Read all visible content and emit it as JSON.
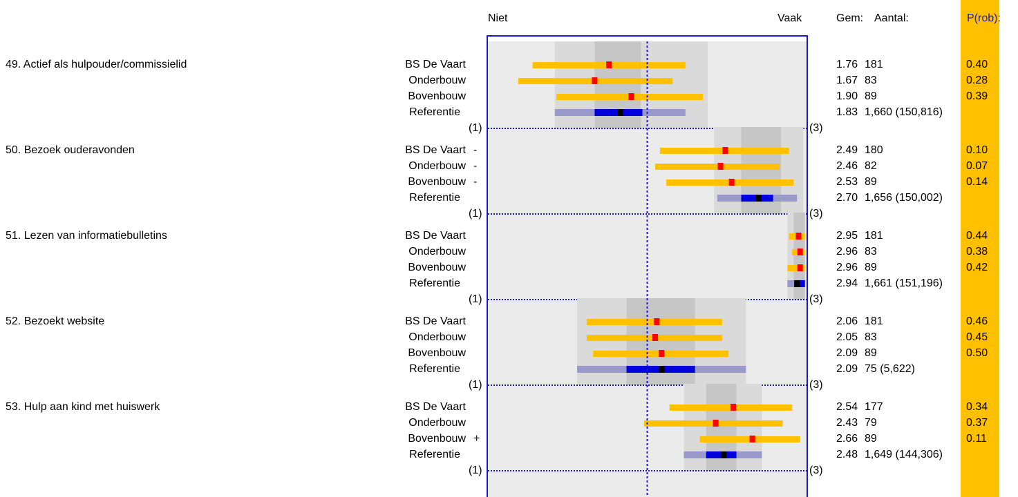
{
  "header": {
    "left_anchor": "Niet",
    "right_anchor": "Vaak",
    "mean_label": "Gem:",
    "count_label": "Aantal:",
    "prob_label": "P(rob):"
  },
  "scale_labels": {
    "min": "(1)",
    "max": "(3)"
  },
  "colors": {
    "school_bar": "#ffc000",
    "school_mean": "#ff0000",
    "reference_bar_outer": "#9999cc",
    "reference_bar_inner": "#0000dd",
    "reference_mean": "#000000",
    "frame": "#1a1acd",
    "prob_column": "#ffc000"
  },
  "chart_data": {
    "type": "range-dot",
    "x_range": [
      1,
      3
    ],
    "midline": 2,
    "items": [
      {
        "title": "49.  Actief als hulpouder/commissielid",
        "reference_band": {
          "outer": [
            1.42,
            2.38
          ],
          "inner": [
            1.67,
            1.96
          ]
        },
        "rows": [
          {
            "group": "BS De Vaart",
            "sign": "",
            "range": [
              1.28,
              2.24
            ],
            "mean": 1.76,
            "mean_display": "1.76",
            "count": "181",
            "prob": "0.40"
          },
          {
            "group": "Onderbouw",
            "sign": "",
            "range": [
              1.19,
              2.16
            ],
            "mean": 1.67,
            "mean_display": "1.67",
            "count": "83",
            "prob": "0.28"
          },
          {
            "group": "Bovenbouw",
            "sign": "",
            "range": [
              1.43,
              2.35
            ],
            "mean": 1.9,
            "mean_display": "1.90",
            "count": "89",
            "prob": "0.39"
          },
          {
            "group": "Referentie",
            "sign": "",
            "range": [
              1.42,
              2.24
            ],
            "inner": [
              1.67,
              1.97
            ],
            "mean": 1.83,
            "mean_display": "1.83",
            "count": "1,660 (150,816)",
            "prob": "",
            "is_reference": true
          }
        ]
      },
      {
        "title": "50.  Bezoek ouderavonden",
        "reference_band": {
          "outer": [
            2.42,
            2.98
          ],
          "inner": [
            2.59,
            2.84
          ]
        },
        "rows": [
          {
            "group": "BS De Vaart",
            "sign": "-",
            "range": [
              2.08,
              2.89
            ],
            "mean": 2.49,
            "mean_display": "2.49",
            "count": "180",
            "prob": "0.10"
          },
          {
            "group": "Onderbouw",
            "sign": "-",
            "range": [
              2.05,
              2.83
            ],
            "mean": 2.46,
            "mean_display": "2.46",
            "count": "82",
            "prob": "0.07"
          },
          {
            "group": "Bovenbouw",
            "sign": "-",
            "range": [
              2.12,
              2.92
            ],
            "mean": 2.53,
            "mean_display": "2.53",
            "count": "89",
            "prob": "0.14"
          },
          {
            "group": "Referentie",
            "sign": "",
            "range": [
              2.44,
              2.94
            ],
            "inner": [
              2.59,
              2.79
            ],
            "mean": 2.7,
            "mean_display": "2.70",
            "count": "1,656 (150,002)",
            "prob": "",
            "is_reference": true
          }
        ]
      },
      {
        "title": "51.  Lezen van informatiebulletins",
        "reference_band": {
          "outer": [
            2.88,
            2.99
          ],
          "inner": [
            2.92,
            2.99
          ]
        },
        "rows": [
          {
            "group": "BS De Vaart",
            "sign": "",
            "range": [
              2.89,
              2.99
            ],
            "mean": 2.95,
            "mean_display": "2.95",
            "count": "181",
            "prob": "0.44"
          },
          {
            "group": "Onderbouw",
            "sign": "",
            "range": [
              2.91,
              2.99
            ],
            "mean": 2.96,
            "mean_display": "2.96",
            "count": "83",
            "prob": "0.38"
          },
          {
            "group": "Bovenbouw",
            "sign": "",
            "range": [
              2.88,
              2.99
            ],
            "mean": 2.96,
            "mean_display": "2.96",
            "count": "89",
            "prob": "0.42"
          },
          {
            "group": "Referentie",
            "sign": "",
            "range": [
              2.88,
              2.99
            ],
            "inner": [
              2.93,
              2.99
            ],
            "mean": 2.94,
            "mean_display": "2.94",
            "count": "1,661 (151,196)",
            "prob": "",
            "is_reference": true
          }
        ]
      },
      {
        "title": "52.  Bezoekt website",
        "reference_band": {
          "outer": [
            1.56,
            2.62
          ],
          "inner": [
            1.87,
            2.3
          ]
        },
        "rows": [
          {
            "group": "BS De Vaart",
            "sign": "",
            "range": [
              1.62,
              2.47
            ],
            "mean": 2.06,
            "mean_display": "2.06",
            "count": "181",
            "prob": "0.46"
          },
          {
            "group": "Onderbouw",
            "sign": "",
            "range": [
              1.62,
              2.47
            ],
            "mean": 2.05,
            "mean_display": "2.05",
            "count": "83",
            "prob": "0.45"
          },
          {
            "group": "Bovenbouw",
            "sign": "",
            "range": [
              1.66,
              2.51
            ],
            "mean": 2.09,
            "mean_display": "2.09",
            "count": "89",
            "prob": "0.50"
          },
          {
            "group": "Referentie",
            "sign": "",
            "range": [
              1.56,
              2.62
            ],
            "inner": [
              1.87,
              2.3
            ],
            "mean": 2.09,
            "mean_display": "2.09",
            "count": "75 (5,622)",
            "prob": "",
            "is_reference": true
          }
        ]
      },
      {
        "title": "53.  Hulp aan kind met huiswerk",
        "reference_band": {
          "outer": [
            2.23,
            2.72
          ],
          "inner": [
            2.37,
            2.56
          ]
        },
        "rows": [
          {
            "group": "BS De Vaart",
            "sign": "",
            "range": [
              2.14,
              2.91
            ],
            "mean": 2.54,
            "mean_display": "2.54",
            "count": "177",
            "prob": "0.34"
          },
          {
            "group": "Onderbouw",
            "sign": "",
            "range": [
              1.98,
              2.85
            ],
            "mean": 2.43,
            "mean_display": "2.43",
            "count": "79",
            "prob": "0.37"
          },
          {
            "group": "Bovenbouw",
            "sign": "+",
            "range": [
              2.33,
              2.96
            ],
            "mean": 2.66,
            "mean_display": "2.66",
            "count": "89",
            "prob": "0.11"
          },
          {
            "group": "Referentie",
            "sign": "",
            "range": [
              2.23,
              2.72
            ],
            "inner": [
              2.37,
              2.56
            ],
            "mean": 2.48,
            "mean_display": "2.48",
            "count": "1,649 (144,306)",
            "prob": "",
            "is_reference": true
          }
        ]
      }
    ]
  }
}
